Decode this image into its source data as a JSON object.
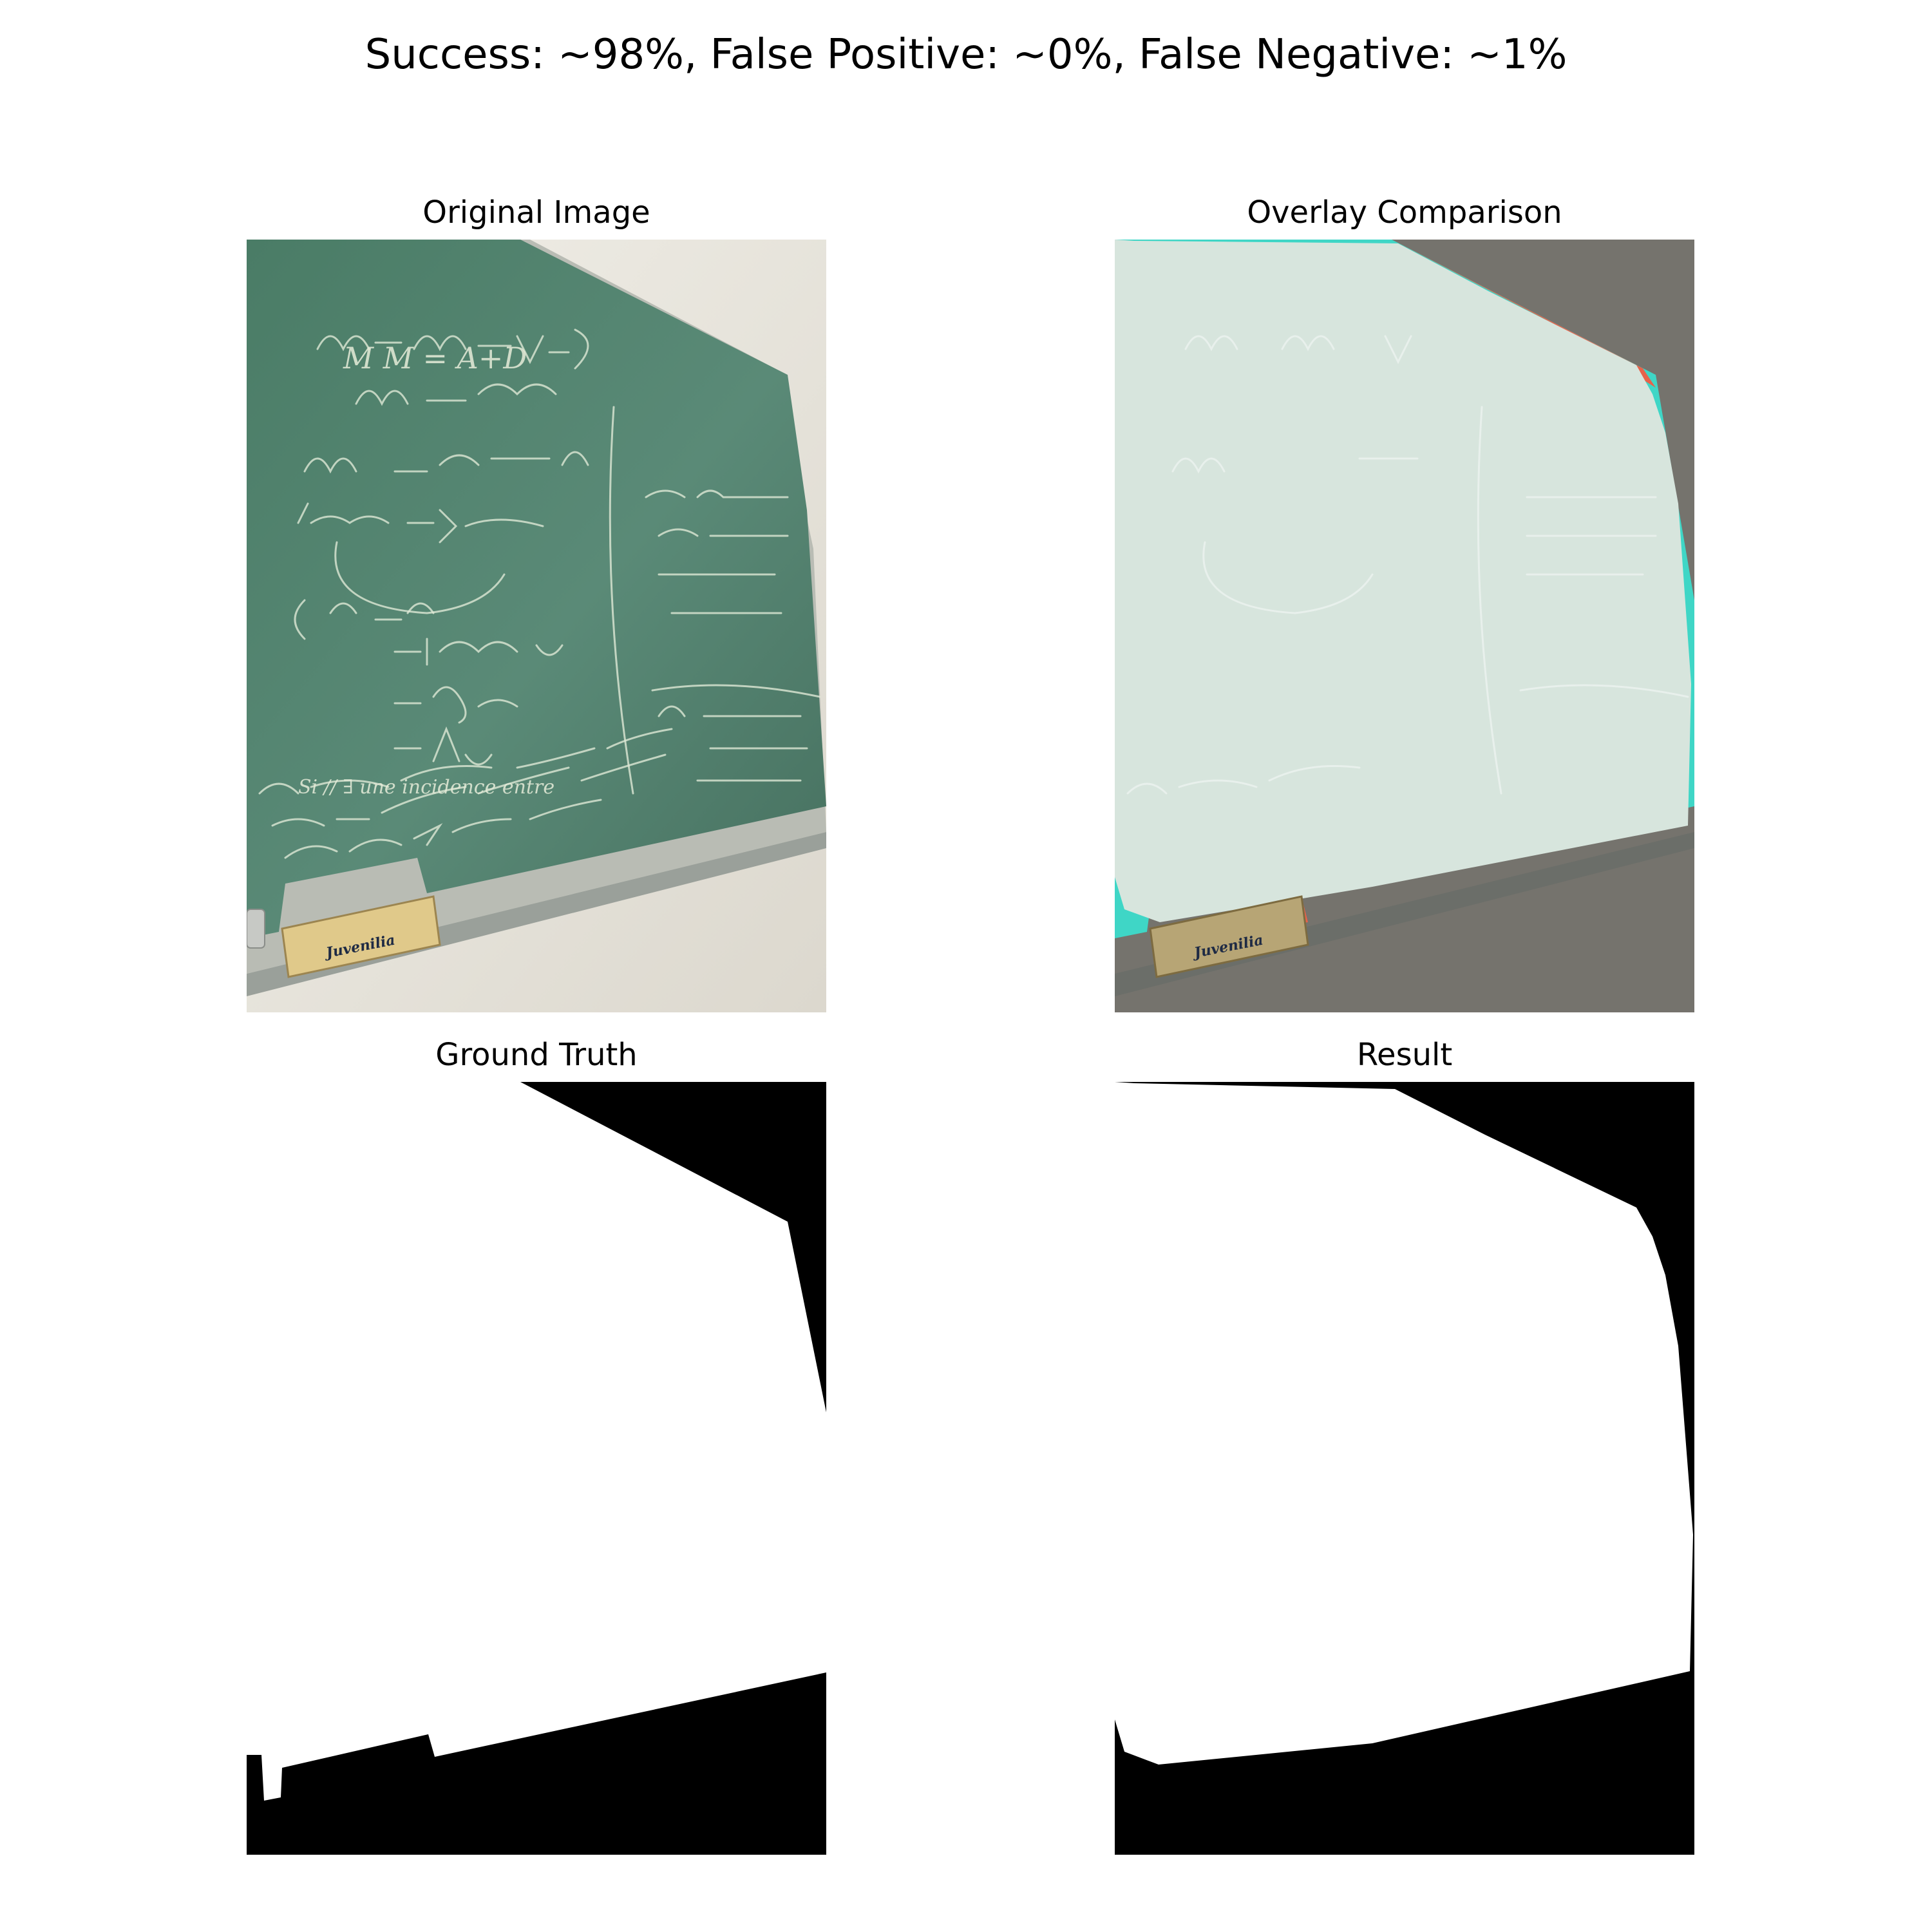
{
  "figure": {
    "suptitle": "Success: ~98%, False Positive: ~0%, False Negative: ~1%"
  },
  "panels": {
    "original": {
      "title": "Original Image"
    },
    "overlay": {
      "title": "Overlay Comparison"
    },
    "ground_truth": {
      "title": "Ground Truth"
    },
    "result": {
      "title": "Result"
    }
  },
  "board": {
    "eraser_brand": "Juvenilia"
  },
  "colors": {
    "board_green": "#4f7f6a",
    "wall": "#ece9e0",
    "overlay_tint": "#d8e6df",
    "false_negative": "#3fd6c6",
    "false_positive": "#e8624a",
    "mask_on": "#ffffff",
    "mask_off": "#000000"
  }
}
